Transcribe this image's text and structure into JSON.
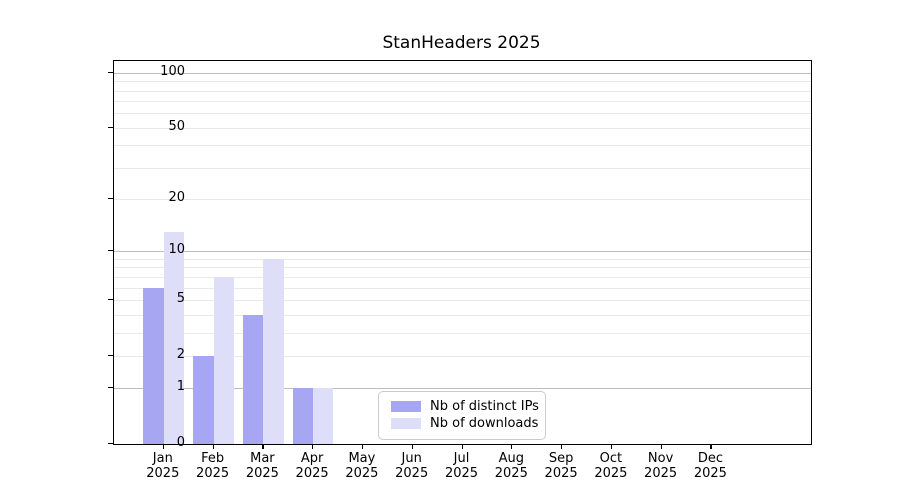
{
  "chart_data": {
    "type": "bar",
    "title": "StanHeaders 2025",
    "year_label": "2025",
    "categories": [
      "Jan",
      "Feb",
      "Mar",
      "Apr",
      "May",
      "Jun",
      "Jul",
      "Aug",
      "Sep",
      "Oct",
      "Nov",
      "Dec"
    ],
    "series": [
      {
        "name": "Nb of distinct IPs",
        "color": "#a6a6f2",
        "values": [
          6,
          2,
          4,
          1,
          0,
          0,
          0,
          0,
          0,
          0,
          0,
          0
        ]
      },
      {
        "name": "Nb of downloads",
        "color": "#dedef9",
        "values": [
          13,
          7,
          9,
          1,
          0,
          0,
          0,
          0,
          0,
          0,
          0,
          0
        ]
      }
    ],
    "xlabel": "",
    "ylabel": "",
    "yscale": "log1p",
    "ylim": [
      0,
      116
    ],
    "yticks": [
      0,
      1,
      2,
      5,
      10,
      20,
      50,
      100
    ],
    "major_gridlines": [
      1,
      10,
      100
    ],
    "minor_gridlines": [
      2,
      3,
      4,
      5,
      6,
      7,
      8,
      9,
      20,
      30,
      40,
      50,
      60,
      70,
      80,
      90
    ],
    "grid": "on",
    "legend_position": "bottom-center-inside",
    "colors": {
      "spine": "#000000",
      "major_grid": "#bdbdbd",
      "minor_grid": "#e9e9e9",
      "background": "#ffffff",
      "text": "#000000"
    }
  }
}
